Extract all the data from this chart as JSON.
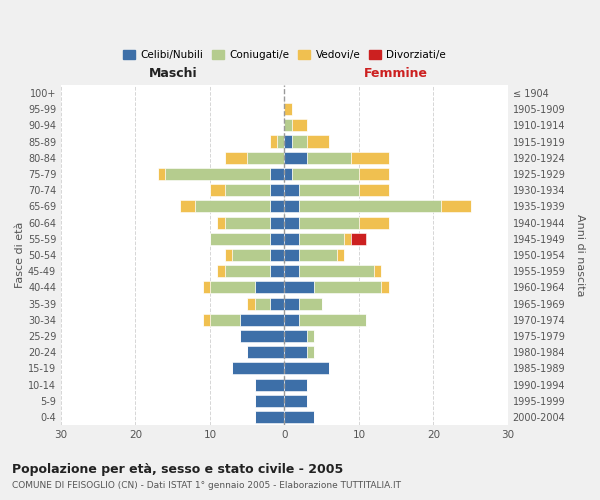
{
  "age_groups": [
    "0-4",
    "5-9",
    "10-14",
    "15-19",
    "20-24",
    "25-29",
    "30-34",
    "35-39",
    "40-44",
    "45-49",
    "50-54",
    "55-59",
    "60-64",
    "65-69",
    "70-74",
    "75-79",
    "80-84",
    "85-89",
    "90-94",
    "95-99",
    "100+"
  ],
  "birth_years": [
    "2000-2004",
    "1995-1999",
    "1990-1994",
    "1985-1989",
    "1980-1984",
    "1975-1979",
    "1970-1974",
    "1965-1969",
    "1960-1964",
    "1955-1959",
    "1950-1954",
    "1945-1949",
    "1940-1944",
    "1935-1939",
    "1930-1934",
    "1925-1929",
    "1920-1924",
    "1915-1919",
    "1910-1914",
    "1905-1909",
    "≤ 1904"
  ],
  "colors": {
    "celibi": "#3d6fa8",
    "coniugati": "#b5cc8e",
    "vedovi": "#f0c050",
    "divorziati": "#cc2020"
  },
  "maschi": {
    "celibi": [
      4,
      4,
      4,
      7,
      5,
      6,
      6,
      2,
      4,
      2,
      2,
      2,
      2,
      2,
      2,
      2,
      0,
      0,
      0,
      0,
      0
    ],
    "coniugati": [
      0,
      0,
      0,
      0,
      0,
      0,
      4,
      2,
      6,
      6,
      5,
      8,
      6,
      10,
      6,
      14,
      5,
      1,
      0,
      0,
      0
    ],
    "vedovi": [
      0,
      0,
      0,
      0,
      0,
      0,
      1,
      1,
      1,
      1,
      1,
      0,
      1,
      2,
      2,
      1,
      3,
      1,
      0,
      0,
      0
    ],
    "divorziati": [
      0,
      0,
      0,
      0,
      0,
      0,
      0,
      0,
      0,
      0,
      0,
      0,
      0,
      0,
      0,
      0,
      0,
      0,
      0,
      0,
      0
    ]
  },
  "femmine": {
    "celibi": [
      4,
      3,
      3,
      6,
      3,
      3,
      2,
      2,
      4,
      2,
      2,
      2,
      2,
      2,
      2,
      1,
      3,
      1,
      0,
      0,
      0
    ],
    "coniugati": [
      0,
      0,
      0,
      0,
      1,
      1,
      9,
      3,
      9,
      10,
      5,
      6,
      8,
      19,
      8,
      9,
      6,
      2,
      1,
      0,
      0
    ],
    "vedovi": [
      0,
      0,
      0,
      0,
      0,
      0,
      0,
      0,
      1,
      1,
      1,
      1,
      4,
      4,
      4,
      4,
      5,
      3,
      2,
      1,
      0
    ],
    "divorziati": [
      0,
      0,
      0,
      0,
      0,
      0,
      0,
      0,
      0,
      0,
      0,
      2,
      0,
      0,
      0,
      0,
      0,
      0,
      0,
      0,
      0
    ]
  },
  "xlim": 30,
  "title": "Popolazione per età, sesso e stato civile - 2005",
  "subtitle": "COMUNE DI FEISOGLIO (CN) - Dati ISTAT 1° gennaio 2005 - Elaborazione TUTTITALIA.IT",
  "ylabel_left": "Fasce di età",
  "ylabel_right": "Anni di nascita",
  "xlabel_left": "Maschi",
  "xlabel_right": "Femmine",
  "legend_labels": [
    "Celibi/Nubili",
    "Coniugati/e",
    "Vedovi/e",
    "Divorziati/e"
  ],
  "bg_color": "#f0f0f0",
  "plot_bg": "#ffffff"
}
